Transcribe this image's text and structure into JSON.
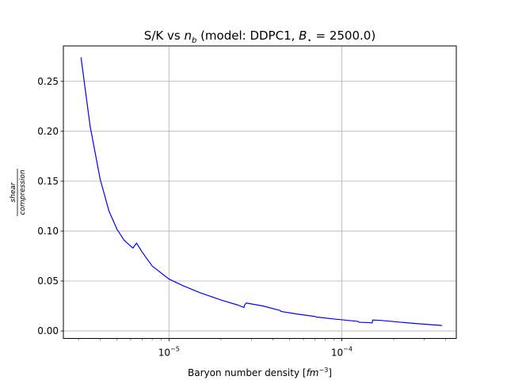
{
  "chart_data": {
    "type": "line",
    "title_prefix": "S/K vs ",
    "title_var": "n",
    "title_sub": "b",
    "title_suffix": " (model: DDPC1, ",
    "title_param": "B",
    "title_sub2": "⋆",
    "title_value": " = 2500.0)",
    "xlabel_prefix": "Baryon number density [",
    "xlabel_unit": "fm",
    "xlabel_exp": "−3",
    "xlabel_suffix": "]",
    "ylabel_num": "shear",
    "ylabel_den": "compression",
    "x_scale": "log",
    "xlim": [
      2.45e-06,
      0.00046
    ],
    "ylim": [
      -0.0075,
      0.2855
    ],
    "grid": true,
    "yticks": [
      0.0,
      0.05,
      0.1,
      0.15,
      0.2,
      0.25
    ],
    "ytick_labels": [
      "0.00",
      "0.05",
      "0.10",
      "0.15",
      "0.20",
      "0.25"
    ],
    "xticks": [
      {
        "value": 1e-05,
        "base": "10",
        "exp": "−5"
      },
      {
        "value": 0.0001,
        "base": "10",
        "exp": "−4"
      }
    ],
    "series": [
      {
        "color": "#0000ff",
        "x": [
          3.1e-06,
          3.5e-06,
          4e-06,
          4.5e-06,
          5e-06,
          5.5e-06,
          6e-06,
          6.2e-06,
          6.3e-06,
          6.5e-06,
          7e-06,
          8e-06,
          1e-05,
          1.2e-05,
          1.5e-05,
          2e-05,
          2.5e-05,
          2.72e-05,
          2.74e-05,
          2.8e-05,
          3.5e-05,
          4.4e-05,
          4.45e-05,
          5.5e-05,
          7e-05,
          7.1e-05,
          9e-05,
          0.00011,
          0.000125,
          0.000126,
          0.000145,
          0.00015,
          0.000151,
          0.00017,
          0.00022,
          0.0003,
          0.00038
        ],
        "y": [
          0.274,
          0.205,
          0.152,
          0.12,
          0.102,
          0.091,
          0.085,
          0.083,
          0.085,
          0.088,
          0.079,
          0.065,
          0.052,
          0.0455,
          0.0385,
          0.031,
          0.026,
          0.0235,
          0.026,
          0.028,
          0.025,
          0.0205,
          0.0195,
          0.017,
          0.0145,
          0.014,
          0.012,
          0.0105,
          0.0095,
          0.0087,
          0.0083,
          0.008,
          0.011,
          0.0105,
          0.0087,
          0.0068,
          0.0055
        ]
      }
    ]
  }
}
